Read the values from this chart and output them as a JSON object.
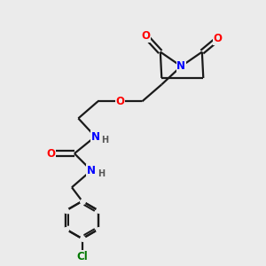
{
  "bg_color": "#ebebeb",
  "bond_color": "#1a1a1a",
  "bond_width": 1.6,
  "atom_colors": {
    "N": "#0000ff",
    "O": "#ff0000",
    "Cl": "#007700",
    "H_label": "#555555"
  },
  "font_size_atom": 8.5,
  "font_size_H": 7.0,
  "figsize": [
    3.0,
    3.0
  ],
  "dpi": 100
}
